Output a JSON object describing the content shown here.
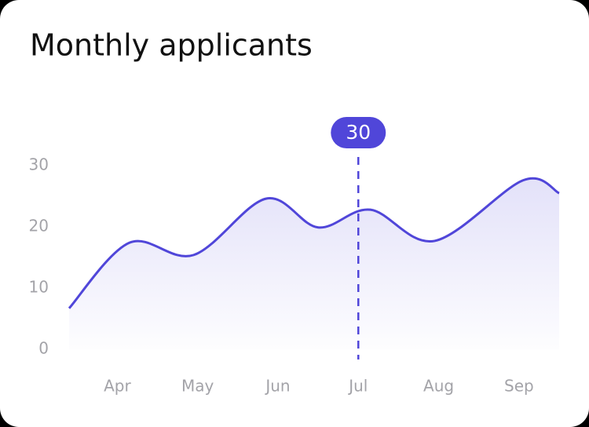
{
  "chart_data": {
    "type": "area",
    "title": "Monthly applicants",
    "x": [
      3.4,
      4.15,
      4.95,
      5.85,
      6.5,
      7.15,
      7.95,
      9.05,
      9.5
    ],
    "values": [
      6.7,
      17.4,
      15.4,
      24.6,
      19.9,
      22.8,
      17.7,
      27.6,
      25.5
    ],
    "color": "#5046d9",
    "xlim": [
      3.4,
      9.5
    ],
    "xticks": [
      {
        "value": 4,
        "label": "Apr"
      },
      {
        "value": 5,
        "label": "May"
      },
      {
        "value": 6,
        "label": "Jun"
      },
      {
        "value": 7,
        "label": "Jul"
      },
      {
        "value": 8,
        "label": "Aug"
      },
      {
        "value": 9,
        "label": "Sep"
      }
    ],
    "ylim": [
      0,
      30
    ],
    "yticks": [
      0,
      10,
      20,
      30
    ],
    "highlight": {
      "x": 7,
      "value": 30
    }
  }
}
